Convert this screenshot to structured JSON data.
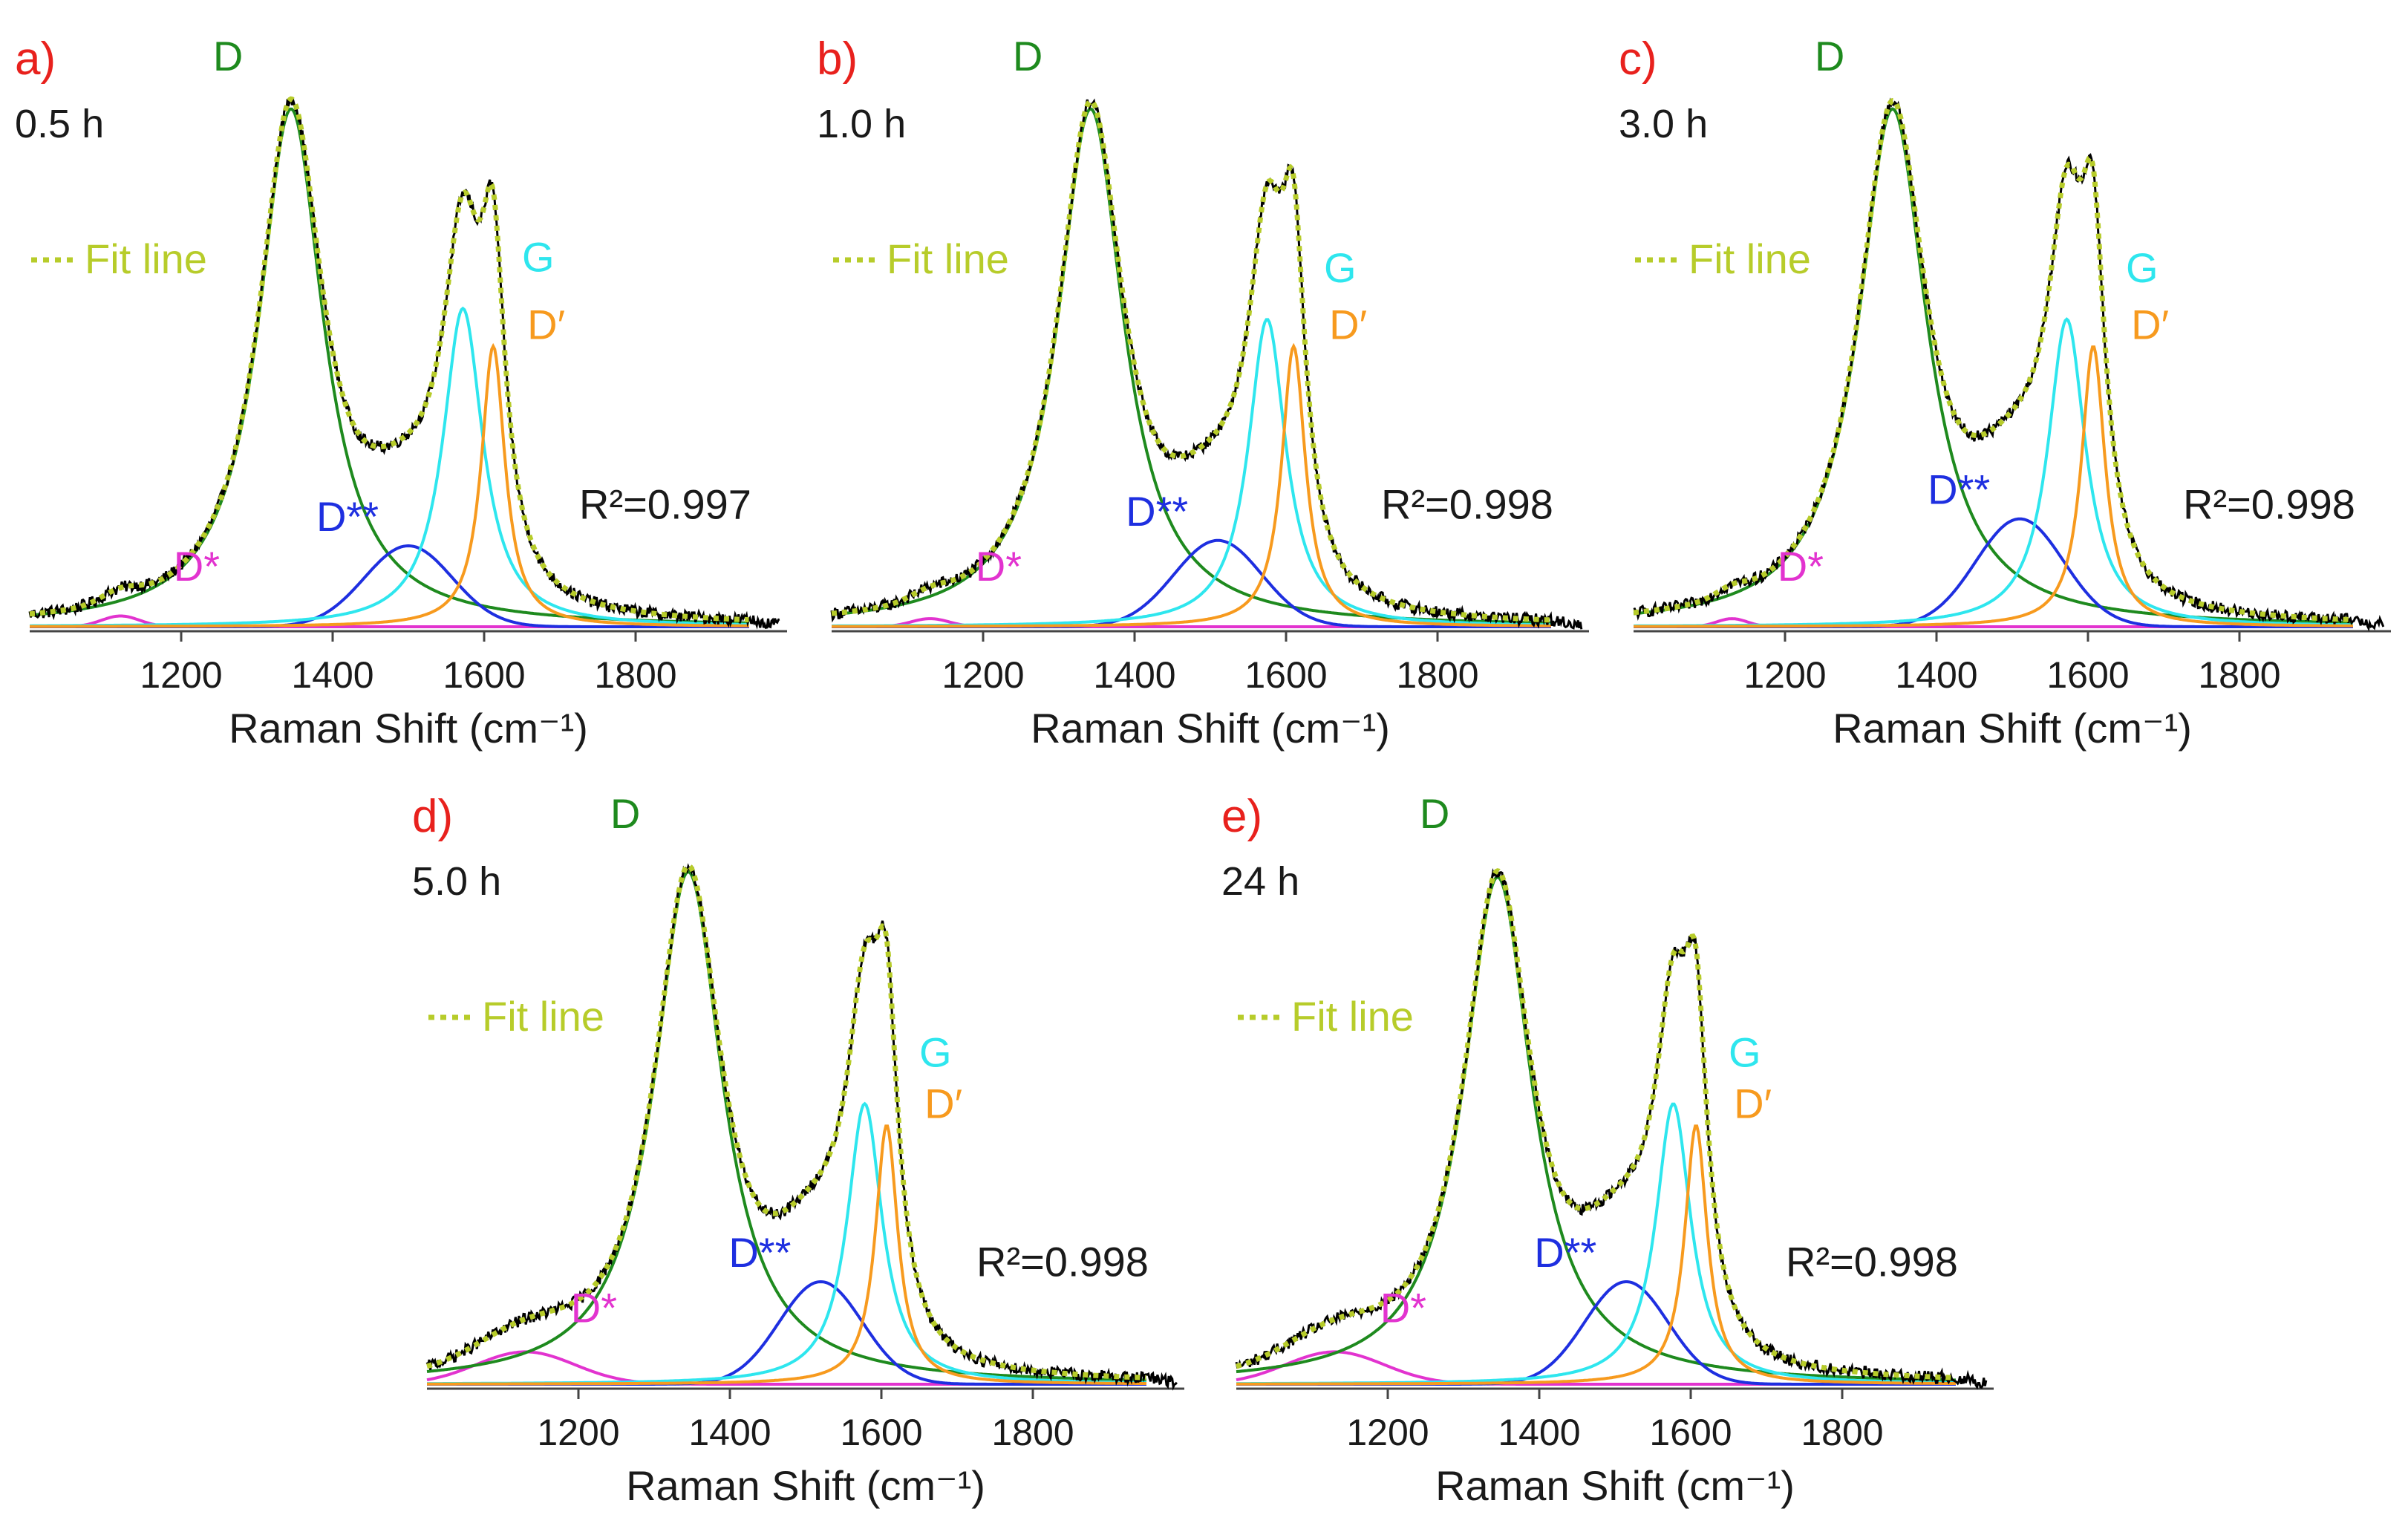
{
  "figure": {
    "x_axis_label": "Raman Shift (cm⁻¹)",
    "colors": {
      "label": "#e8211d",
      "text": "#1a1a1a",
      "measured": "#000000",
      "fit": "#b7cc2a",
      "D": "#1e8a1e",
      "G": "#2ee6ee",
      "Dprime": "#f79a1e",
      "Dstar": "#e233cf",
      "Dstarstar": "#1e2fe0"
    },
    "legend_fit": "Fit line"
  },
  "chart_data": [
    {
      "type": "line",
      "panel_label": "a)",
      "time_label": "0.5 h",
      "r_squared": "R²=0.997",
      "xlabel": "Raman Shift (cm⁻¹)",
      "xlim": [
        1000,
        2000
      ],
      "ylim": [
        0,
        1.06
      ],
      "xticks": [
        1200,
        1400,
        1600,
        1800
      ],
      "xtick_labels": [
        "1200",
        "1400",
        "1600",
        "1800"
      ],
      "series": [
        {
          "name": "D",
          "label": "D",
          "center": 1345,
          "amplitude": 0.96,
          "hwhm": 52,
          "shape": "lorentzian"
        },
        {
          "name": "G",
          "label": "G",
          "center": 1572,
          "amplitude": 0.59,
          "hwhm": 32,
          "shape": "lorentzian"
        },
        {
          "name": "Dprime",
          "label": "D′",
          "center": 1612,
          "amplitude": 0.52,
          "hwhm": 19,
          "shape": "lorentzian"
        },
        {
          "name": "Dstarstar",
          "label": "D**",
          "center": 1500,
          "amplitude": 0.15,
          "sigma": 58,
          "shape": "gaussian"
        },
        {
          "name": "Dstar",
          "label": "D*",
          "center": 1120,
          "amplitude": 0.02,
          "sigma": 25,
          "shape": "gaussian"
        }
      ]
    },
    {
      "type": "line",
      "panel_label": "b)",
      "time_label": "1.0 h",
      "r_squared": "R²=0.998",
      "xlabel": "Raman Shift (cm⁻¹)",
      "xlim": [
        1000,
        2000
      ],
      "ylim": [
        0,
        1.06
      ],
      "xticks": [
        1200,
        1400,
        1600,
        1800
      ],
      "xtick_labels": [
        "1200",
        "1400",
        "1600",
        "1800"
      ],
      "series": [
        {
          "name": "D",
          "label": "D",
          "center": 1342,
          "amplitude": 0.96,
          "hwhm": 53,
          "shape": "lorentzian"
        },
        {
          "name": "G",
          "label": "G",
          "center": 1575,
          "amplitude": 0.57,
          "hwhm": 30,
          "shape": "lorentzian"
        },
        {
          "name": "Dprime",
          "label": "D′",
          "center": 1610,
          "amplitude": 0.52,
          "hwhm": 19,
          "shape": "lorentzian"
        },
        {
          "name": "Dstarstar",
          "label": "D**",
          "center": 1510,
          "amplitude": 0.16,
          "sigma": 58,
          "shape": "gaussian"
        },
        {
          "name": "Dstar",
          "label": "D*",
          "center": 1130,
          "amplitude": 0.015,
          "sigma": 25,
          "shape": "gaussian"
        }
      ]
    },
    {
      "type": "line",
      "panel_label": "c)",
      "time_label": "3.0 h",
      "r_squared": "R²=0.998",
      "xlabel": "Raman Shift (cm⁻¹)",
      "xlim": [
        1000,
        2000
      ],
      "ylim": [
        0,
        1.06
      ],
      "xticks": [
        1200,
        1400,
        1600,
        1800
      ],
      "xtick_labels": [
        "1200",
        "1400",
        "1600",
        "1800"
      ],
      "series": [
        {
          "name": "D",
          "label": "D",
          "center": 1342,
          "amplitude": 0.96,
          "hwhm": 55,
          "shape": "lorentzian"
        },
        {
          "name": "G",
          "label": "G",
          "center": 1572,
          "amplitude": 0.57,
          "hwhm": 30,
          "shape": "lorentzian"
        },
        {
          "name": "Dprime",
          "label": "D′",
          "center": 1607,
          "amplitude": 0.52,
          "hwhm": 19,
          "shape": "lorentzian"
        },
        {
          "name": "Dstarstar",
          "label": "D**",
          "center": 1510,
          "amplitude": 0.2,
          "sigma": 58,
          "shape": "gaussian"
        },
        {
          "name": "Dstar",
          "label": "D*",
          "center": 1130,
          "amplitude": 0.015,
          "sigma": 20,
          "shape": "gaussian"
        }
      ]
    },
    {
      "type": "line",
      "panel_label": "d)",
      "time_label": "5.0 h",
      "r_squared": "R²=0.998",
      "xlabel": "Raman Shift (cm⁻¹)",
      "xlim": [
        1000,
        2000
      ],
      "ylim": [
        0,
        1.06
      ],
      "xticks": [
        1200,
        1400,
        1600,
        1800
      ],
      "xtick_labels": [
        "1200",
        "1400",
        "1600",
        "1800"
      ],
      "series": [
        {
          "name": "D",
          "label": "D",
          "center": 1345,
          "amplitude": 0.95,
          "hwhm": 55,
          "shape": "lorentzian"
        },
        {
          "name": "G",
          "label": "G",
          "center": 1578,
          "amplitude": 0.52,
          "hwhm": 28,
          "shape": "lorentzian"
        },
        {
          "name": "Dprime",
          "label": "D′",
          "center": 1607,
          "amplitude": 0.48,
          "hwhm": 18,
          "shape": "lorentzian"
        },
        {
          "name": "Dstarstar",
          "label": "D**",
          "center": 1520,
          "amplitude": 0.19,
          "sigma": 55,
          "shape": "gaussian"
        },
        {
          "name": "Dstar",
          "label": "D*",
          "center": 1130,
          "amplitude": 0.06,
          "sigma": 65,
          "shape": "gaussian"
        }
      ]
    },
    {
      "type": "line",
      "panel_label": "e)",
      "time_label": "24 h",
      "r_squared": "R²=0.998",
      "xlabel": "Raman Shift (cm⁻¹)",
      "xlim": [
        1000,
        2000
      ],
      "ylim": [
        0,
        1.06
      ],
      "xticks": [
        1200,
        1400,
        1600,
        1800
      ],
      "xtick_labels": [
        "1200",
        "1400",
        "1600",
        "1800"
      ],
      "series": [
        {
          "name": "D",
          "label": "D",
          "center": 1345,
          "amplitude": 0.94,
          "hwhm": 55,
          "shape": "lorentzian"
        },
        {
          "name": "G",
          "label": "G",
          "center": 1577,
          "amplitude": 0.52,
          "hwhm": 28,
          "shape": "lorentzian"
        },
        {
          "name": "Dprime",
          "label": "D′",
          "center": 1607,
          "amplitude": 0.48,
          "hwhm": 18,
          "shape": "lorentzian"
        },
        {
          "name": "Dstarstar",
          "label": "D**",
          "center": 1515,
          "amplitude": 0.19,
          "sigma": 55,
          "shape": "gaussian"
        },
        {
          "name": "Dstar",
          "label": "D*",
          "center": 1130,
          "amplitude": 0.06,
          "sigma": 65,
          "shape": "gaussian"
        }
      ]
    }
  ]
}
